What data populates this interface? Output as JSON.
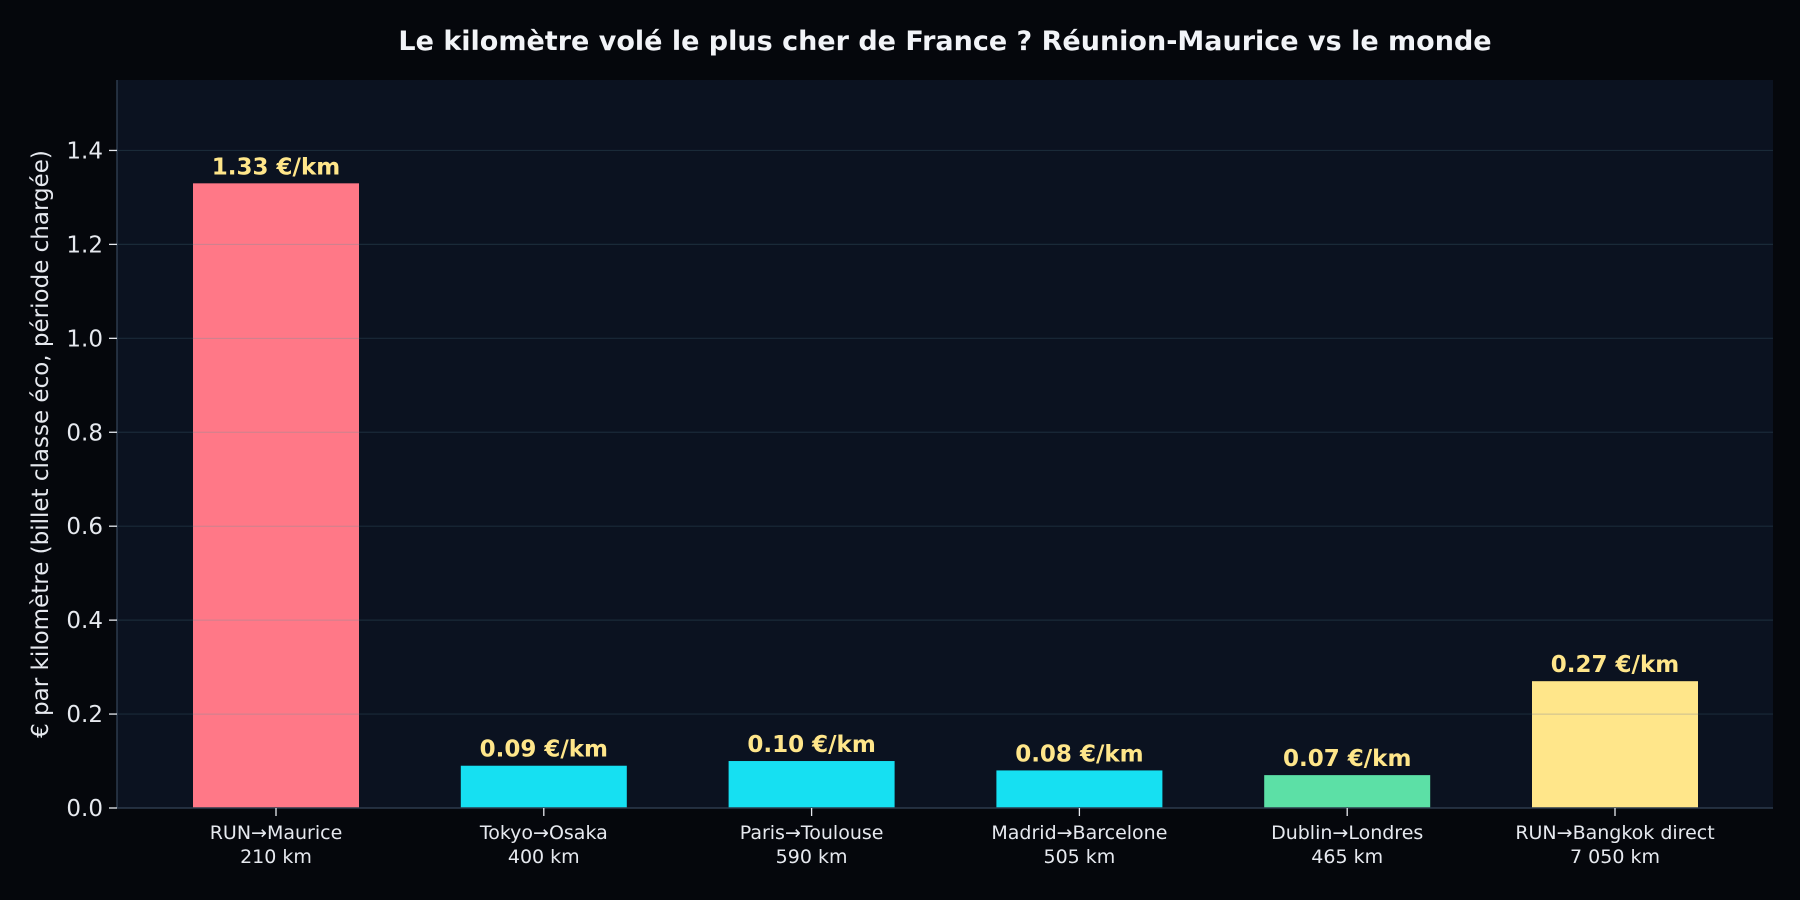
{
  "chart_data": {
    "type": "bar",
    "title": "Le kilomètre volé le plus cher de France ? Réunion-Maurice vs le monde",
    "xlabel": "",
    "ylabel": "€ par kilomètre (billet classe éco, période chargée)",
    "ylim": [
      0,
      1.55
    ],
    "yticks": [
      "0.0",
      "0.2",
      "0.4",
      "0.6",
      "0.8",
      "1.0",
      "1.2",
      "1.4"
    ],
    "grid": true,
    "categories": [
      {
        "route": "RUN→Maurice",
        "distance": "210 km"
      },
      {
        "route": "Tokyo→Osaka",
        "distance": "400 km"
      },
      {
        "route": "Paris→Toulouse",
        "distance": "590 km"
      },
      {
        "route": "Madrid→Barcelone",
        "distance": "505 km"
      },
      {
        "route": "Dublin→Londres",
        "distance": "465 km"
      },
      {
        "route": "RUN→Bangkok direct",
        "distance": "7 050 km"
      }
    ],
    "values": [
      1.33,
      0.09,
      0.1,
      0.08,
      0.07,
      0.27
    ],
    "data_labels": [
      "1.33 €/km",
      "0.09 €/km",
      "0.10 €/km",
      "0.08 €/km",
      "0.07 €/km",
      "0.27 €/km"
    ],
    "bar_colors": [
      "#ff7887",
      "#16e0f2",
      "#16e0f2",
      "#16e0f2",
      "#5ce0a6",
      "#ffe68a"
    ],
    "colors": {
      "background": "#05070c",
      "plot_background": "#0b1220",
      "grid": "#1a2a38",
      "text": "#e6e9ef",
      "data_label": "#ffe68a"
    }
  }
}
